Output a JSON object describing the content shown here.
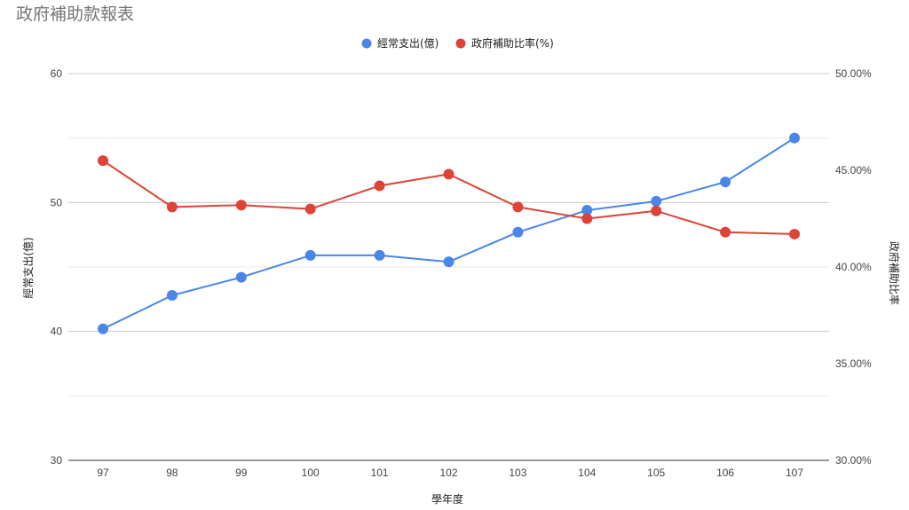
{
  "title": "政府補助款報表",
  "legend": {
    "items": [
      {
        "label": "經常支出(億)",
        "color": "#4a86e8"
      },
      {
        "label": "政府補助比率(%)",
        "color": "#db4437"
      }
    ]
  },
  "axes": {
    "x_title": "學年度",
    "y_left_title": "經常支出(億)",
    "y_right_title": "政府補助比率",
    "x_ticks": [
      "97",
      "98",
      "99",
      "100",
      "101",
      "102",
      "103",
      "104",
      "105",
      "106",
      "107"
    ],
    "y_left_ticks": [
      "30",
      "40",
      "50",
      "60"
    ],
    "y_right_ticks": [
      "30.00%",
      "35.00%",
      "40.00%",
      "45.00%",
      "50.00%"
    ]
  },
  "chart_data": {
    "type": "line",
    "title": "政府補助款報表",
    "xlabel": "學年度",
    "ylabel": "經常支出(億)",
    "y2label": "政府補助比率",
    "categories": [
      "97",
      "98",
      "99",
      "100",
      "101",
      "102",
      "103",
      "104",
      "105",
      "106",
      "107"
    ],
    "ylim": [
      30,
      60
    ],
    "y2lim": [
      30,
      50
    ],
    "grid": true,
    "legend_position": "top",
    "series": [
      {
        "name": "經常支出(億)",
        "axis": "left",
        "color": "#4a86e8",
        "values": [
          40.2,
          42.8,
          44.2,
          45.9,
          45.9,
          45.4,
          47.7,
          49.4,
          50.1,
          51.6,
          55.0
        ]
      },
      {
        "name": "政府補助比率(%)",
        "axis": "right",
        "color": "#db4437",
        "values": [
          45.5,
          43.1,
          43.2,
          43.0,
          44.2,
          44.8,
          43.1,
          42.5,
          42.9,
          41.8,
          41.7
        ]
      }
    ]
  }
}
